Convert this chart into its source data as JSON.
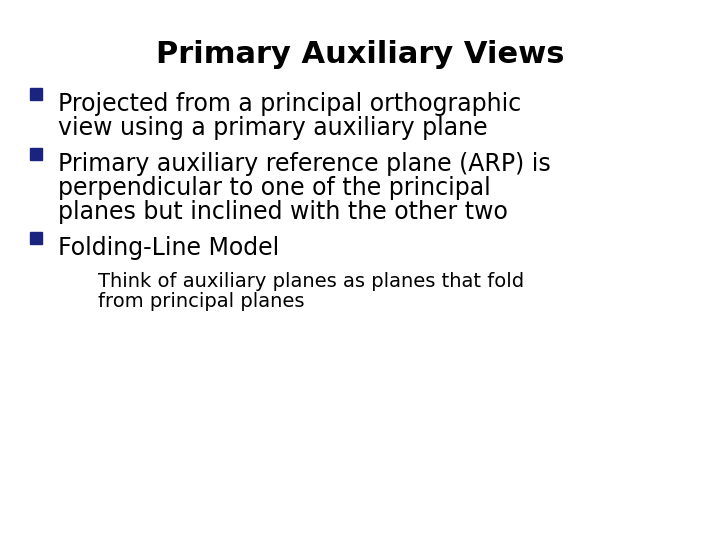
{
  "title": "Primary Auxiliary Views",
  "title_fontsize": 22,
  "title_fontweight": "bold",
  "title_color": "#000000",
  "background_color": "#ffffff",
  "bullet_color": "#1a237e",
  "text_color": "#000000",
  "figsize": [
    7.2,
    5.4
  ],
  "dpi": 100,
  "bullets": [
    {
      "level": 1,
      "lines": [
        "Projected from a principal orthographic",
        "view using a primary auxiliary plane"
      ],
      "fontsize": 17
    },
    {
      "level": 1,
      "lines": [
        "Primary auxiliary reference plane (ARP) is",
        "perpendicular to one of the principal",
        "planes but inclined with the other two"
      ],
      "fontsize": 17
    },
    {
      "level": 1,
      "lines": [
        "Folding-Line Model"
      ],
      "fontsize": 17
    },
    {
      "level": 2,
      "lines": [
        "Think of auxiliary planes as planes that fold",
        "from principal planes"
      ],
      "fontsize": 14
    }
  ]
}
